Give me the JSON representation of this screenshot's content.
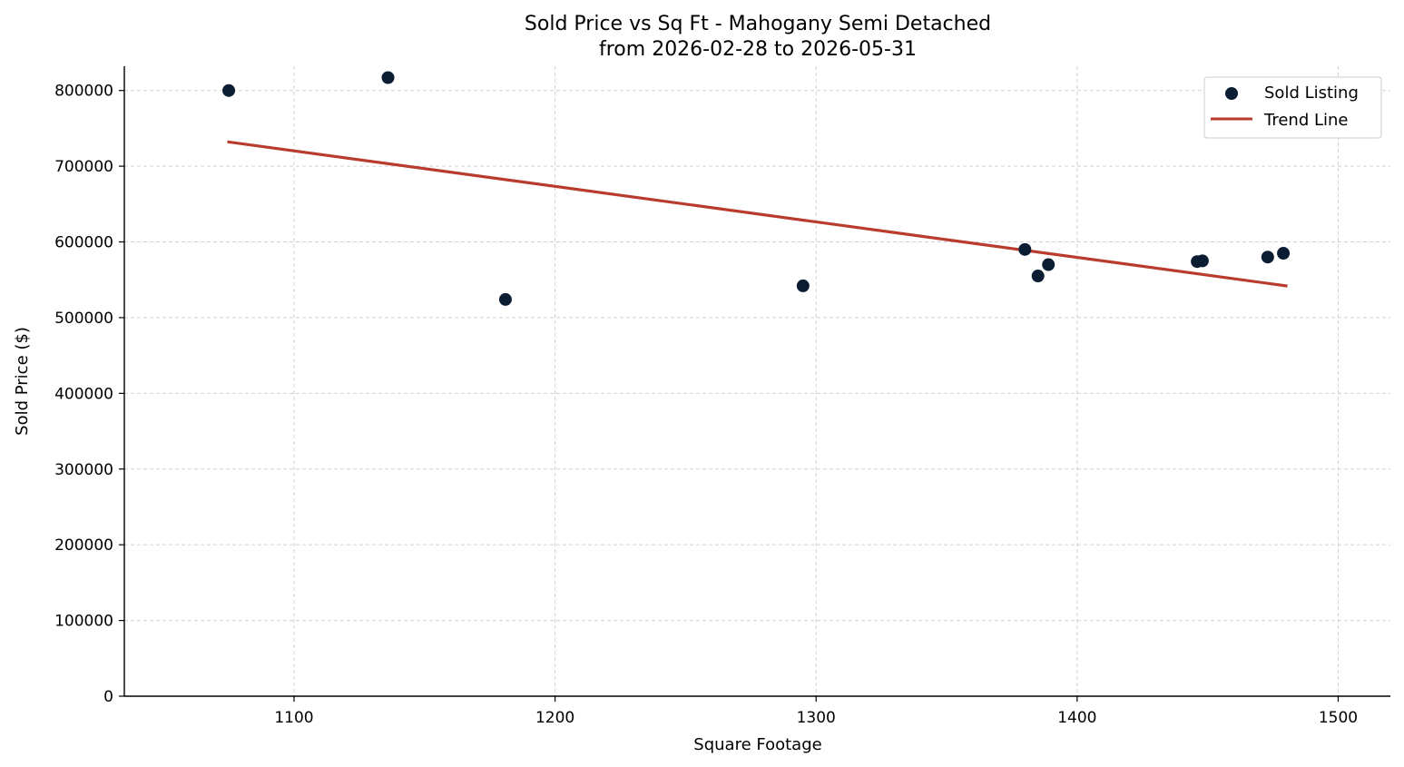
{
  "chart_data": {
    "type": "scatter",
    "title": "Sold Price vs Sq Ft - Mahogany Semi Detached",
    "subtitle": "from 2026-02-28 to 2026-05-31",
    "xlabel": "Square Footage",
    "ylabel": "Sold Price ($)",
    "xlim": [
      1035,
      1520
    ],
    "ylim": [
      0,
      832000
    ],
    "xticks": [
      1100,
      1200,
      1300,
      1400,
      1500
    ],
    "yticks": [
      0,
      100000,
      200000,
      300000,
      400000,
      500000,
      600000,
      700000,
      800000
    ],
    "grid": true,
    "legend_position": "top-right",
    "series": [
      {
        "name": "Sold Listing",
        "kind": "scatter",
        "color": "#0b1d33",
        "points": [
          {
            "x": 1075,
            "y": 800000
          },
          {
            "x": 1136,
            "y": 817000
          },
          {
            "x": 1181,
            "y": 524000
          },
          {
            "x": 1295,
            "y": 542000
          },
          {
            "x": 1380,
            "y": 590000
          },
          {
            "x": 1385,
            "y": 555000
          },
          {
            "x": 1389,
            "y": 570000
          },
          {
            "x": 1446,
            "y": 574000
          },
          {
            "x": 1448,
            "y": 575000
          },
          {
            "x": 1473,
            "y": 580000
          },
          {
            "x": 1479,
            "y": 585000
          }
        ]
      },
      {
        "name": "Trend Line",
        "kind": "line",
        "color": "#b83b2e",
        "points": [
          {
            "x": 1075,
            "y": 732000
          },
          {
            "x": 1480,
            "y": 542000
          }
        ]
      }
    ]
  }
}
